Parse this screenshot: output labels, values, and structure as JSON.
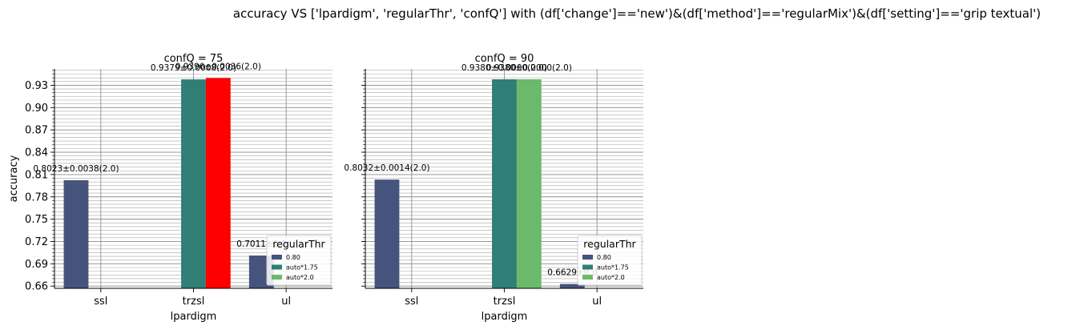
{
  "suptitle": "accuracy VS ['lpardigm', 'regularThr', 'confQ'] with (df['change']=='new')&(df['method']=='regularMix')&(df['setting']=='grip textual')",
  "colors": {
    "0.80": "#46537c",
    "auto*1.75": "#2f7f77",
    "auto*2.0": "#6bb96b",
    "highlight": "#ff0000"
  },
  "chart_data": [
    {
      "type": "bar",
      "title": "confQ = 75",
      "xlabel": "lpardigm",
      "ylabel": "accuracy",
      "categories": [
        "ssl",
        "trzsl",
        "ul"
      ],
      "ylim": [
        0.657,
        0.952
      ],
      "yticks": [
        "0.66",
        "0.69",
        "0.72",
        "0.75",
        "0.78",
        "0.81",
        "0.84",
        "0.87",
        "0.90",
        "0.93"
      ],
      "grid": true,
      "legend": {
        "title": "regularThr",
        "position": "lower-right",
        "entries": [
          "0.80",
          "auto*1.75",
          "auto*2.0"
        ]
      },
      "series": [
        {
          "name": "0.80",
          "values": [
            0.8023,
            null,
            0.7011
          ],
          "labels": [
            "0.8023±0.0038(2.0)",
            "",
            "0.7011±0.0"
          ]
        },
        {
          "name": "auto*1.75",
          "values": [
            null,
            0.9379,
            null
          ],
          "labels": [
            "",
            "0.9379±0.0008(2.0)",
            ""
          ]
        },
        {
          "name": "auto*2.0",
          "values": [
            null,
            0.9396,
            null
          ],
          "labels": [
            "",
            "0.9396±0.0036(2.0)",
            ""
          ]
        }
      ],
      "highlight": {
        "series": 2,
        "category": 1
      }
    },
    {
      "type": "bar",
      "title": "confQ = 90",
      "xlabel": "lpardigm",
      "ylabel": "",
      "categories": [
        "ssl",
        "trzsl",
        "ul"
      ],
      "ylim": [
        0.657,
        0.952
      ],
      "yticks": [],
      "grid": true,
      "legend": {
        "title": "regularThr",
        "position": "lower-right",
        "entries": [
          "0.80",
          "auto*1.75",
          "auto*2.0"
        ]
      },
      "series": [
        {
          "name": "0.80",
          "values": [
            0.8032,
            null,
            0.6629
          ],
          "labels": [
            "0.8032±0.0014(2.0)",
            "",
            "0.6629±0.0"
          ]
        },
        {
          "name": "auto*1.75",
          "values": [
            null,
            0.938,
            null
          ],
          "labels": [
            "",
            "0.9380±0.0000(2.0)",
            ""
          ]
        },
        {
          "name": "auto*2.0",
          "values": [
            null,
            0.938,
            null
          ],
          "labels": [
            "",
            "0.9380±0.0000(2.0)",
            ""
          ]
        }
      ],
      "highlight": null
    }
  ]
}
